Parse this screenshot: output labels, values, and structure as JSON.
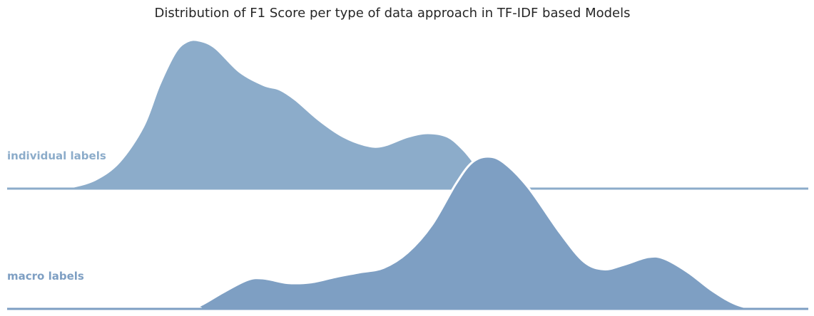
{
  "chart_data": {
    "type": "area",
    "title": "Distribution of F1 Score per type of data approach in TF-IDF based Models",
    "xlabel": "",
    "ylabel": "",
    "grid": false,
    "legend": "none",
    "x_range": [
      0.0,
      1.0
    ],
    "series": [
      {
        "name": "individual labels",
        "color": "#8cacca",
        "points": [
          [
            0.0,
            0.0
          ],
          [
            0.065,
            0.0
          ],
          [
            0.08,
            0.01
          ],
          [
            0.11,
            0.06
          ],
          [
            0.14,
            0.18
          ],
          [
            0.17,
            0.42
          ],
          [
            0.19,
            0.7
          ],
          [
            0.21,
            0.92
          ],
          [
            0.225,
            0.995
          ],
          [
            0.24,
            1.0
          ],
          [
            0.26,
            0.95
          ],
          [
            0.29,
            0.79
          ],
          [
            0.32,
            0.7
          ],
          [
            0.34,
            0.67
          ],
          [
            0.36,
            0.6
          ],
          [
            0.39,
            0.46
          ],
          [
            0.42,
            0.35
          ],
          [
            0.45,
            0.29
          ],
          [
            0.47,
            0.29
          ],
          [
            0.5,
            0.35
          ],
          [
            0.525,
            0.375
          ],
          [
            0.55,
            0.35
          ],
          [
            0.57,
            0.26
          ],
          [
            0.59,
            0.13
          ],
          [
            0.61,
            0.04
          ],
          [
            0.63,
            0.0
          ],
          [
            1.0,
            0.0
          ]
        ]
      },
      {
        "name": "macro labels",
        "color": "#7e9fc3",
        "points": [
          [
            0.0,
            0.0
          ],
          [
            0.22,
            0.0
          ],
          [
            0.24,
            0.02
          ],
          [
            0.27,
            0.11
          ],
          [
            0.3,
            0.19
          ],
          [
            0.32,
            0.2
          ],
          [
            0.35,
            0.17
          ],
          [
            0.38,
            0.175
          ],
          [
            0.41,
            0.21
          ],
          [
            0.44,
            0.24
          ],
          [
            0.47,
            0.27
          ],
          [
            0.5,
            0.37
          ],
          [
            0.53,
            0.55
          ],
          [
            0.56,
            0.82
          ],
          [
            0.58,
            0.96
          ],
          [
            0.6,
            1.0
          ],
          [
            0.62,
            0.96
          ],
          [
            0.65,
            0.8
          ],
          [
            0.69,
            0.5
          ],
          [
            0.72,
            0.31
          ],
          [
            0.745,
            0.26
          ],
          [
            0.77,
            0.29
          ],
          [
            0.8,
            0.34
          ],
          [
            0.82,
            0.33
          ],
          [
            0.85,
            0.24
          ],
          [
            0.88,
            0.12
          ],
          [
            0.91,
            0.03
          ],
          [
            0.94,
            0.0
          ],
          [
            1.0,
            0.0
          ]
        ]
      }
    ]
  }
}
